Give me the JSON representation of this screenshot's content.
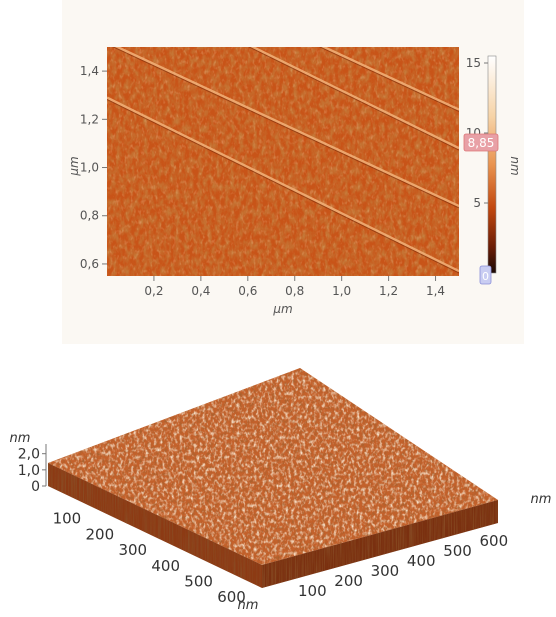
{
  "chart_data": [
    {
      "type": "heatmap",
      "title": "",
      "xlabel": "µm",
      "ylabel": "µm",
      "x_ticks": [
        "0,2",
        "0,4",
        "0,6",
        "0,8",
        "1,0",
        "1,2",
        "1,4"
      ],
      "x_tick_values": [
        0.2,
        0.4,
        0.6,
        0.8,
        1.0,
        1.2,
        1.4
      ],
      "y_ticks": [
        "0,6",
        "0,8",
        "1,0",
        "1,2",
        "1,4"
      ],
      "y_tick_values": [
        0.6,
        0.8,
        1.0,
        1.2,
        1.4
      ],
      "xlim": [
        0.0,
        1.5
      ],
      "ylim": [
        0.55,
        1.5
      ],
      "colorbar": {
        "label": "nm",
        "ticks": [
          "0",
          "5",
          "10",
          "15"
        ],
        "tick_values": [
          0,
          5,
          10,
          15
        ],
        "range": [
          0,
          15.5
        ],
        "upper_marker": "8,85",
        "lower_marker": "0",
        "colors": [
          "#1a0904",
          "#6b1d06",
          "#c2480f",
          "#e9934f",
          "#f6d3a6",
          "#ffffff"
        ]
      },
      "terrace_steps": [
        {
          "x0": 0.0,
          "y0": 1.29,
          "x1": 1.5,
          "y1": 0.57
        },
        {
          "x0": 0.0,
          "y0": 1.52,
          "x1": 1.5,
          "y1": 0.84
        },
        {
          "x0": 0.58,
          "y0": 1.52,
          "x1": 1.5,
          "y1": 1.08
        },
        {
          "x0": 0.88,
          "y0": 1.52,
          "x1": 1.5,
          "y1": 1.24
        }
      ]
    },
    {
      "type": "area",
      "title": "",
      "z_axis": {
        "label": "nm",
        "ticks": [
          "2,0",
          "1,0",
          "0"
        ],
        "tick_values": [
          2.0,
          1.0,
          0.0
        ]
      },
      "left_axis": {
        "label": "",
        "ticks": [
          "100",
          "200",
          "300",
          "400",
          "500",
          "600"
        ],
        "tick_values": [
          100,
          200,
          300,
          400,
          500,
          600
        ]
      },
      "front_axis": {
        "label": "nm",
        "ticks": [
          "100",
          "200",
          "300",
          "400",
          "500",
          "600"
        ],
        "tick_values": [
          100,
          200,
          300,
          400,
          500,
          600
        ]
      },
      "right_axis_label": "nm",
      "surface_color": "#c4612b"
    }
  ]
}
